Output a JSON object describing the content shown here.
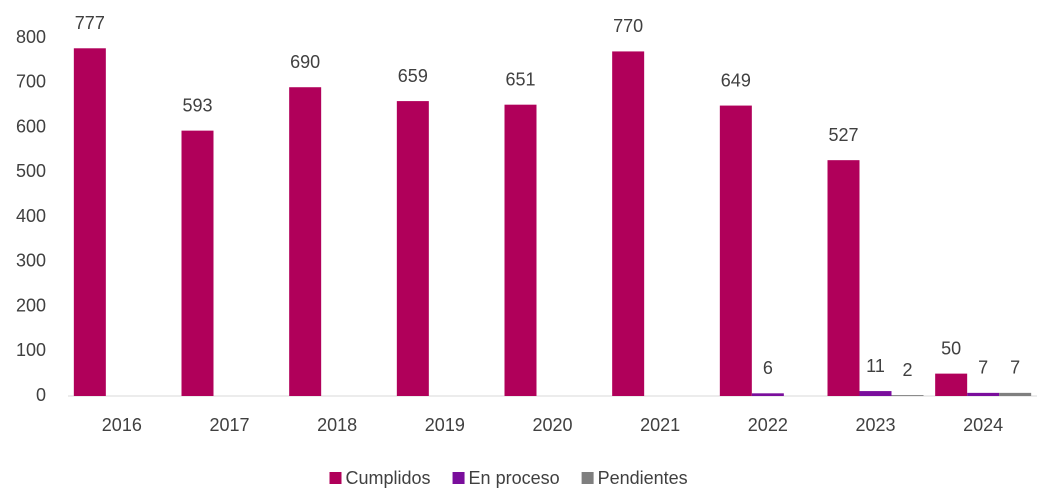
{
  "chart_data": {
    "type": "bar",
    "categories": [
      "2016",
      "2017",
      "2018",
      "2019",
      "2020",
      "2021",
      "2022",
      "2023",
      "2024"
    ],
    "series": [
      {
        "name": "Cumplidos",
        "color": "#b0005a",
        "values": [
          777,
          593,
          690,
          659,
          651,
          770,
          649,
          527,
          50
        ]
      },
      {
        "name": "En proceso",
        "color": "#7a0e9c",
        "values": [
          null,
          null,
          null,
          null,
          null,
          null,
          6,
          11,
          7
        ]
      },
      {
        "name": "Pendientes",
        "color": "#7f7f7f",
        "values": [
          null,
          null,
          null,
          null,
          null,
          null,
          null,
          2,
          7
        ]
      }
    ],
    "ylim": [
      0,
      800
    ],
    "yticks": [
      0,
      100,
      200,
      300,
      400,
      500,
      600,
      700,
      800
    ],
    "grid": false,
    "legend": "bottom"
  }
}
